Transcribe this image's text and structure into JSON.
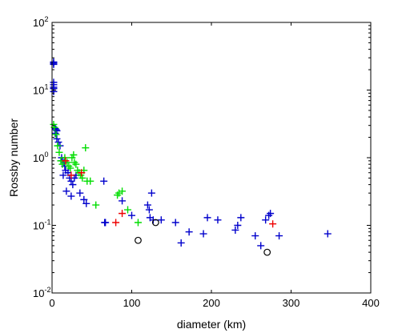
{
  "chart_data": {
    "type": "scatter",
    "title": "",
    "xlabel": "diameter (km)",
    "ylabel": "Rossby number",
    "xlim": [
      0,
      400
    ],
    "ylim": [
      0.01,
      100
    ],
    "yscale": "log",
    "grid": false,
    "legend": "none",
    "x_ticks": [
      0,
      100,
      200,
      300,
      400
    ],
    "y_ticks": [
      {
        "value": 0.01,
        "base": "10",
        "exp": "-2"
      },
      {
        "value": 0.1,
        "base": "10",
        "exp": "-1"
      },
      {
        "value": 1,
        "base": "10",
        "exp": "0"
      },
      {
        "value": 10,
        "base": "10",
        "exp": "1"
      },
      {
        "value": 100,
        "base": "10",
        "exp": "2"
      }
    ],
    "series": [
      {
        "marker": "plus",
        "color": "#0000cc",
        "points": [
          [
            2,
            26
          ],
          [
            2,
            25
          ],
          [
            2,
            24
          ],
          [
            2,
            13
          ],
          [
            2,
            12
          ],
          [
            2,
            11
          ],
          [
            2,
            10.5
          ],
          [
            2,
            9.5
          ],
          [
            4,
            2.7
          ],
          [
            5,
            2.6
          ],
          [
            6,
            2.5
          ],
          [
            4,
            2.3
          ],
          [
            6,
            1.9
          ],
          [
            8,
            1.7
          ],
          [
            10,
            1.5
          ],
          [
            12,
            1.0
          ],
          [
            13,
            0.9
          ],
          [
            15,
            0.85
          ],
          [
            16,
            0.75
          ],
          [
            17,
            0.65
          ],
          [
            20,
            0.6
          ],
          [
            14,
            0.55
          ],
          [
            22,
            0.5
          ],
          [
            24,
            0.45
          ],
          [
            26,
            0.4
          ],
          [
            28,
            0.5
          ],
          [
            30,
            0.55
          ],
          [
            18,
            0.32
          ],
          [
            24,
            0.27
          ],
          [
            35,
            0.3
          ],
          [
            40,
            0.24
          ],
          [
            43,
            0.21
          ],
          [
            65,
            0.45
          ],
          [
            66,
            0.11
          ],
          [
            67,
            0.11
          ],
          [
            88,
            0.23
          ],
          [
            100,
            0.14
          ],
          [
            120,
            0.2
          ],
          [
            122,
            0.17
          ],
          [
            123,
            0.13
          ],
          [
            125,
            0.3
          ],
          [
            127,
            0.12
          ],
          [
            137,
            0.12
          ],
          [
            155,
            0.11
          ],
          [
            162,
            0.055
          ],
          [
            172,
            0.08
          ],
          [
            190,
            0.075
          ],
          [
            195,
            0.13
          ],
          [
            208,
            0.12
          ],
          [
            230,
            0.085
          ],
          [
            233,
            0.1
          ],
          [
            237,
            0.13
          ],
          [
            255,
            0.07
          ],
          [
            262,
            0.05
          ],
          [
            268,
            0.12
          ],
          [
            272,
            0.14
          ],
          [
            274,
            0.15
          ],
          [
            285,
            0.07
          ],
          [
            346,
            0.075
          ]
        ]
      },
      {
        "marker": "plus",
        "color": "#00dd00",
        "points": [
          [
            2,
            3.1
          ],
          [
            3,
            2.8
          ],
          [
            5,
            2.2
          ],
          [
            7,
            1.5
          ],
          [
            9,
            1.2
          ],
          [
            11,
            0.9
          ],
          [
            13,
            0.8
          ],
          [
            16,
            1.0
          ],
          [
            19,
            0.85
          ],
          [
            21,
            0.75
          ],
          [
            23,
            0.7
          ],
          [
            25,
            1.0
          ],
          [
            27,
            1.1
          ],
          [
            28,
            0.85
          ],
          [
            30,
            0.8
          ],
          [
            32,
            0.65
          ],
          [
            34,
            0.6
          ],
          [
            36,
            0.55
          ],
          [
            38,
            0.5
          ],
          [
            40,
            0.65
          ],
          [
            42,
            1.4
          ],
          [
            44,
            0.45
          ],
          [
            48,
            0.45
          ],
          [
            55,
            0.2
          ],
          [
            82,
            0.28
          ],
          [
            84,
            0.3
          ],
          [
            88,
            0.32
          ],
          [
            95,
            0.17
          ],
          [
            108,
            0.11
          ]
        ]
      },
      {
        "marker": "plus",
        "color": "#ee0000",
        "points": [
          [
            17,
            0.9
          ],
          [
            24,
            0.55
          ],
          [
            37,
            0.6
          ],
          [
            80,
            0.11
          ],
          [
            88,
            0.15
          ],
          [
            277,
            0.105
          ]
        ]
      },
      {
        "marker": "circle",
        "color": "#000000",
        "points": [
          [
            108,
            0.06
          ],
          [
            130,
            0.11
          ],
          [
            270,
            0.04
          ]
        ]
      }
    ]
  }
}
